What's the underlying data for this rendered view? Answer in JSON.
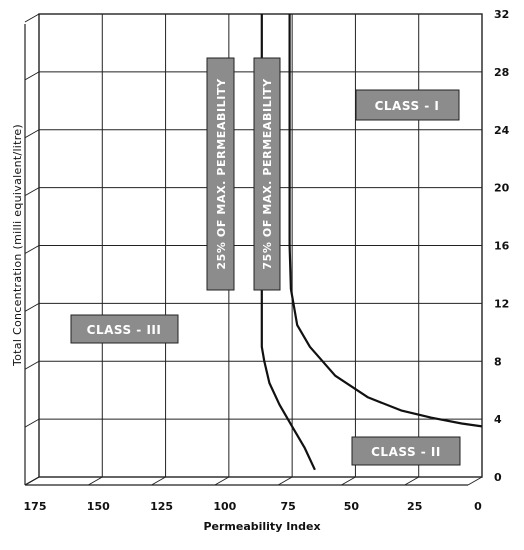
{
  "colors": {
    "grid": "#222222",
    "curve": "#111111",
    "label_box": "#8c8c8c",
    "label_border": "#222222",
    "label_text": "#ffffff"
  },
  "chart_data": {
    "type": "line",
    "xlabel": "Permeability Index",
    "ylabel": "Total Concentration (milli equivalent/litre)",
    "xlim": [
      175,
      0
    ],
    "ylim": [
      0,
      32
    ],
    "x_ticks": [
      175,
      150,
      125,
      100,
      75,
      50,
      25,
      0
    ],
    "y_ticks": [
      0,
      4,
      8,
      12,
      16,
      20,
      24,
      28,
      32
    ],
    "grid": true,
    "series": [
      {
        "name": "25% OF MAX. PERMEABILITY",
        "points": [
          [
            87,
            32
          ],
          [
            87,
            28
          ],
          [
            87,
            24
          ],
          [
            87,
            20
          ],
          [
            87,
            16
          ],
          [
            87,
            12
          ],
          [
            87,
            9
          ],
          [
            86,
            8
          ],
          [
            84,
            6.5
          ],
          [
            80,
            5
          ],
          [
            75,
            3.5
          ],
          [
            70,
            2
          ],
          [
            66,
            0.5
          ]
        ]
      },
      {
        "name": "75% OF MAX. PERMEABILITY",
        "points": [
          [
            76,
            32
          ],
          [
            76,
            28
          ],
          [
            76,
            24
          ],
          [
            76,
            20
          ],
          [
            76,
            16
          ],
          [
            75.5,
            13
          ],
          [
            73,
            10.5
          ],
          [
            68,
            9
          ],
          [
            58,
            7
          ],
          [
            45,
            5.5
          ],
          [
            32,
            4.6
          ],
          [
            20,
            4.1
          ],
          [
            8,
            3.7
          ],
          [
            0,
            3.5
          ]
        ]
      }
    ],
    "annotations": [
      "CLASS - I",
      "CLASS - II",
      "CLASS - III"
    ]
  }
}
